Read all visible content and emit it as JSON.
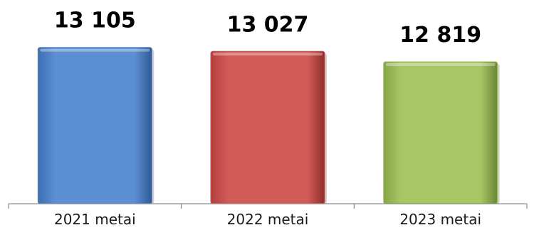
{
  "chart_data": {
    "type": "bar",
    "categories": [
      "2021 metai",
      "2022 metai",
      "2023 metai"
    ],
    "values": [
      13105,
      13027,
      12819
    ],
    "value_labels": [
      "13 105",
      "13 027",
      "12 819"
    ],
    "colors": [
      "#5585c8",
      "#cd5553",
      "#a3c261"
    ],
    "ylim": [
      10000,
      13200
    ],
    "grid": false,
    "legend": "none"
  }
}
